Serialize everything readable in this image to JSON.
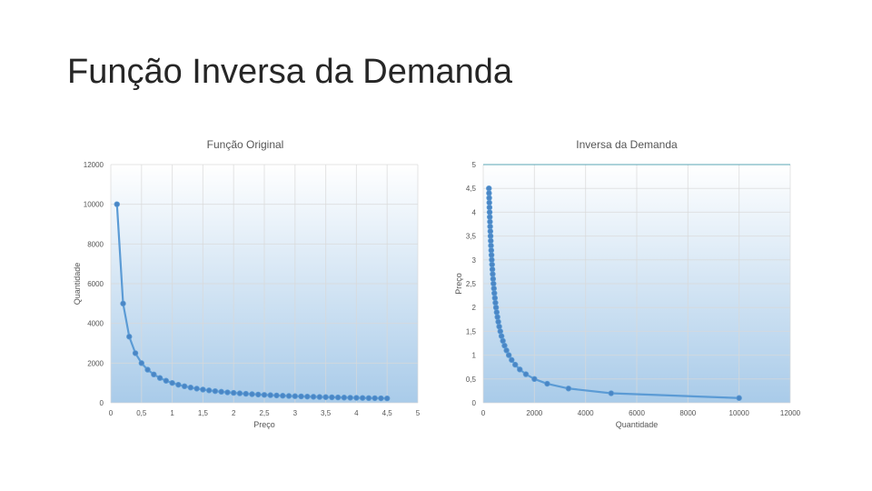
{
  "slide": {
    "title": "Função Inversa da Demanda"
  },
  "colors": {
    "series": "#5b9bd5",
    "marker": "#4a86c5",
    "grid": "#d9d9d9",
    "plot_top": "#ffffff",
    "plot_bottom": "#a9cbe9",
    "text": "#595959"
  },
  "chart_data": [
    {
      "type": "scatter",
      "title": "Função Original",
      "xlabel": "Preço",
      "ylabel": "Quantidade",
      "xlim": [
        0,
        5
      ],
      "ylim": [
        0,
        12000
      ],
      "x_ticks": [
        "0",
        "0,5",
        "1",
        "1,5",
        "2",
        "2,5",
        "3",
        "3,5",
        "4",
        "4,5",
        "5"
      ],
      "x_tick_values": [
        0,
        0.5,
        1,
        1.5,
        2,
        2.5,
        3,
        3.5,
        4,
        4.5,
        5
      ],
      "y_ticks": [
        "0",
        "2000",
        "4000",
        "6000",
        "8000",
        "10000",
        "12000"
      ],
      "y_tick_values": [
        0,
        2000,
        4000,
        6000,
        8000,
        10000,
        12000
      ],
      "grid": true,
      "series": [
        {
          "x": [
            0.1,
            0.2,
            0.3,
            0.4,
            0.5,
            0.6,
            0.7,
            0.8,
            0.9,
            1.0,
            1.1,
            1.2,
            1.3,
            1.4,
            1.5,
            1.6,
            1.7,
            1.8,
            1.9,
            2.0,
            2.1,
            2.2,
            2.3,
            2.4,
            2.5,
            2.6,
            2.7,
            2.8,
            2.9,
            3.0,
            3.1,
            3.2,
            3.3,
            3.4,
            3.5,
            3.6,
            3.7,
            3.8,
            3.9,
            4.0,
            4.1,
            4.2,
            4.3,
            4.4,
            4.5
          ],
          "y": [
            10000,
            5000,
            3333,
            2500,
            2000,
            1667,
            1429,
            1250,
            1111,
            1000,
            909,
            833,
            769,
            714,
            667,
            625,
            588,
            556,
            526,
            500,
            476,
            455,
            435,
            417,
            400,
            385,
            370,
            357,
            345,
            333,
            323,
            313,
            303,
            294,
            286,
            278,
            270,
            263,
            256,
            250,
            244,
            238,
            233,
            227,
            222
          ]
        }
      ]
    },
    {
      "type": "scatter",
      "title": "Inversa da Demanda",
      "xlabel": "Quantidade",
      "ylabel": "Preço",
      "xlim": [
        0,
        12000
      ],
      "ylim": [
        0,
        5
      ],
      "x_ticks": [
        "0",
        "2000",
        "4000",
        "6000",
        "8000",
        "10000",
        "12000"
      ],
      "x_tick_values": [
        0,
        2000,
        4000,
        6000,
        8000,
        10000,
        12000
      ],
      "y_ticks": [
        "0",
        "0,5",
        "1",
        "1,5",
        "2",
        "2,5",
        "3",
        "3,5",
        "4",
        "4,5",
        "5"
      ],
      "y_tick_values": [
        0,
        0.5,
        1,
        1.5,
        2,
        2.5,
        3,
        3.5,
        4,
        4.5,
        5
      ],
      "grid": true,
      "series": [
        {
          "x": [
            222,
            227,
            233,
            238,
            244,
            250,
            256,
            263,
            270,
            278,
            286,
            294,
            303,
            313,
            323,
            333,
            345,
            357,
            370,
            385,
            400,
            417,
            435,
            455,
            476,
            500,
            526,
            556,
            588,
            625,
            667,
            714,
            769,
            833,
            909,
            1000,
            1111,
            1250,
            1429,
            1667,
            2000,
            2500,
            3333,
            5000,
            10000
          ],
          "y": [
            4.5,
            4.4,
            4.3,
            4.2,
            4.1,
            4.0,
            3.9,
            3.8,
            3.7,
            3.6,
            3.5,
            3.4,
            3.3,
            3.2,
            3.1,
            3.0,
            2.9,
            2.8,
            2.7,
            2.6,
            2.5,
            2.4,
            2.3,
            2.2,
            2.1,
            2.0,
            1.9,
            1.8,
            1.7,
            1.6,
            1.5,
            1.4,
            1.3,
            1.2,
            1.1,
            1.0,
            0.9,
            0.8,
            0.7,
            0.6,
            0.5,
            0.4,
            0.3,
            0.2,
            0.1
          ]
        }
      ]
    }
  ]
}
